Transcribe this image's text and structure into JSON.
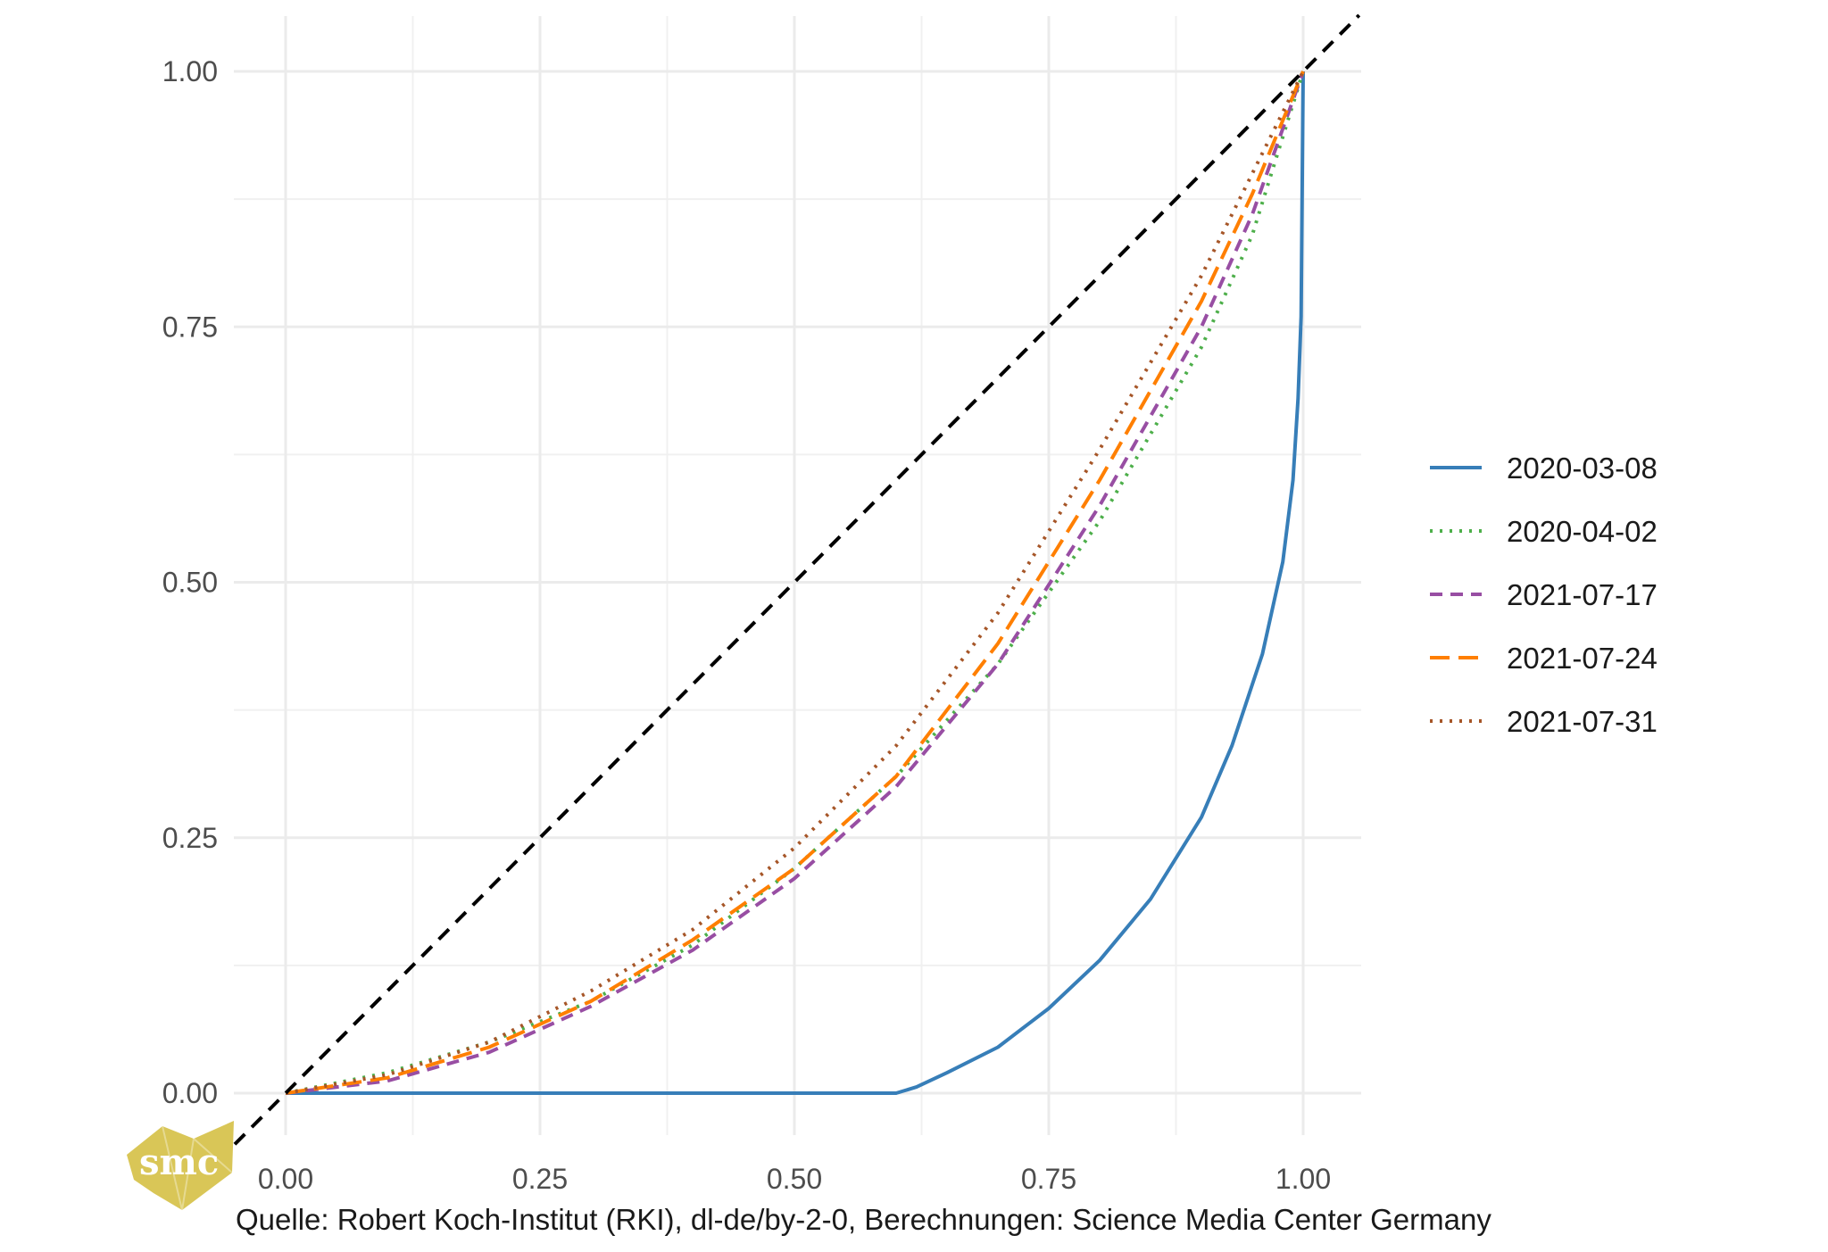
{
  "chart_data": {
    "type": "line",
    "xlim": [
      0,
      1
    ],
    "ylim": [
      0,
      1
    ],
    "x_ticks": [
      "0.00",
      "0.25",
      "0.50",
      "0.75",
      "1.00"
    ],
    "y_ticks": [
      "0.00",
      "0.25",
      "0.50",
      "0.75",
      "1.00"
    ],
    "grid": true,
    "legend_position": "right",
    "reference_line": {
      "style": "dashed",
      "color": "#000000",
      "points": [
        [
          0,
          0
        ],
        [
          1,
          1
        ]
      ]
    },
    "series": [
      {
        "name": "2020-03-08",
        "color": "#377eb8",
        "dash": "solid",
        "points": [
          [
            0,
            0
          ],
          [
            0.6,
            0
          ],
          [
            0.62,
            0.006
          ],
          [
            0.65,
            0.02
          ],
          [
            0.7,
            0.045
          ],
          [
            0.75,
            0.083
          ],
          [
            0.8,
            0.13
          ],
          [
            0.85,
            0.19
          ],
          [
            0.9,
            0.27
          ],
          [
            0.93,
            0.34
          ],
          [
            0.96,
            0.43
          ],
          [
            0.98,
            0.52
          ],
          [
            0.99,
            0.6
          ],
          [
            0.995,
            0.68
          ],
          [
            0.998,
            0.76
          ],
          [
            1,
            1
          ]
        ]
      },
      {
        "name": "2020-04-02",
        "color": "#4daf4a",
        "dash": "dotted",
        "points": [
          [
            0,
            0
          ],
          [
            0.1,
            0.02
          ],
          [
            0.2,
            0.05
          ],
          [
            0.3,
            0.09
          ],
          [
            0.4,
            0.145
          ],
          [
            0.5,
            0.22
          ],
          [
            0.6,
            0.31
          ],
          [
            0.7,
            0.42
          ],
          [
            0.8,
            0.56
          ],
          [
            0.9,
            0.73
          ],
          [
            0.95,
            0.84
          ],
          [
            1,
            1
          ]
        ]
      },
      {
        "name": "2021-07-17",
        "color": "#984ea3",
        "dash": "dashed",
        "points": [
          [
            0,
            0
          ],
          [
            0.1,
            0.012
          ],
          [
            0.2,
            0.04
          ],
          [
            0.3,
            0.085
          ],
          [
            0.4,
            0.14
          ],
          [
            0.5,
            0.21
          ],
          [
            0.6,
            0.3
          ],
          [
            0.7,
            0.42
          ],
          [
            0.8,
            0.575
          ],
          [
            0.9,
            0.75
          ],
          [
            0.95,
            0.86
          ],
          [
            1,
            1
          ]
        ]
      },
      {
        "name": "2021-07-24",
        "color": "#ff7f00",
        "dash": "longdash",
        "points": [
          [
            0,
            0
          ],
          [
            0.1,
            0.015
          ],
          [
            0.2,
            0.045
          ],
          [
            0.3,
            0.09
          ],
          [
            0.4,
            0.15
          ],
          [
            0.5,
            0.22
          ],
          [
            0.6,
            0.31
          ],
          [
            0.7,
            0.44
          ],
          [
            0.8,
            0.6
          ],
          [
            0.9,
            0.775
          ],
          [
            0.95,
            0.88
          ],
          [
            1,
            1
          ]
        ]
      },
      {
        "name": "2021-07-31",
        "color": "#a65628",
        "dash": "dotted",
        "points": [
          [
            0,
            0
          ],
          [
            0.1,
            0.018
          ],
          [
            0.2,
            0.05
          ],
          [
            0.3,
            0.1
          ],
          [
            0.4,
            0.16
          ],
          [
            0.5,
            0.24
          ],
          [
            0.6,
            0.34
          ],
          [
            0.7,
            0.47
          ],
          [
            0.8,
            0.63
          ],
          [
            0.9,
            0.8
          ],
          [
            0.95,
            0.9
          ],
          [
            1,
            1
          ]
        ]
      }
    ]
  },
  "caption": "Quelle: Robert Koch-Institut (RKI), dl-de/by-2-0, Berechnungen: Science Media Center Germany",
  "logo": {
    "text": "smc",
    "color": "#d9c657"
  }
}
